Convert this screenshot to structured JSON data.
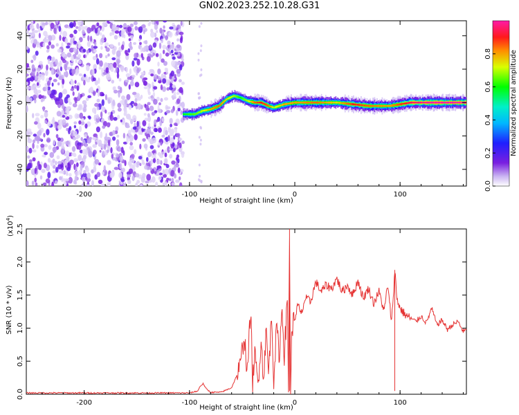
{
  "title": "GN02.2023.252.10.28.G31",
  "chart_data": [
    {
      "type": "heatmap",
      "xlabel": "Height of straight line (km)",
      "ylabel": "Frequency (Hz)",
      "xlim": [
        -255,
        163
      ],
      "ylim": [
        -50,
        49
      ],
      "xticks": [
        -200,
        -100,
        0,
        100
      ],
      "xtick_labels": [
        "-200",
        "-100",
        "0",
        "100"
      ],
      "yticks": [
        -40,
        -20,
        0,
        20,
        40
      ],
      "ytick_labels": [
        "-40",
        "-20",
        "0",
        "20",
        "40"
      ],
      "colorbar": {
        "label": "Normalized spectral amplitude",
        "range": [
          0,
          1
        ],
        "ticks": [
          0.0,
          0.2,
          0.4,
          0.6,
          0.8
        ],
        "tick_labels": [
          "0.0",
          "0.2",
          "0.4",
          "0.6",
          "0.8"
        ],
        "colormap": "rainbow"
      },
      "noise_region_x": [
        -255,
        -106
      ],
      "signal_track": {
        "x": [
          -106,
          -95,
          -88,
          -80,
          -72,
          -65,
          -58,
          -52,
          -45,
          -38,
          -32,
          -25,
          -20,
          -10,
          0,
          20,
          40,
          55,
          70,
          90,
          110,
          130,
          163
        ],
        "y": [
          -7,
          -7,
          -5,
          -4,
          -2,
          2,
          4,
          3,
          1,
          0,
          0,
          -2,
          -3,
          -1,
          0,
          0,
          0,
          -1,
          -2,
          -2,
          0,
          0,
          0
        ],
        "amplitude": [
          0.6,
          0.65,
          0.7,
          0.8,
          0.85,
          0.75,
          0.7,
          0.6,
          0.7,
          0.85,
          0.9,
          0.85,
          0.7,
          0.8,
          0.8,
          0.85,
          0.75,
          0.9,
          0.85,
          0.8,
          0.95,
          1.0,
          1.0
        ]
      }
    },
    {
      "type": "line",
      "xlabel": "Height of straight line (km)",
      "ylabel": "SNR (10 * v/v)",
      "y_multiplier_label": "(x10",
      "y_multiplier_exp": "4",
      "y_multiplier_close": ")",
      "xlim": [
        -255,
        163
      ],
      "ylim": [
        0,
        2.5
      ],
      "xticks": [
        -200,
        -100,
        0,
        100
      ],
      "xtick_labels": [
        "-200",
        "-100",
        "0",
        "100"
      ],
      "yticks": [
        0,
        0.5,
        1.0,
        1.5,
        2.0,
        2.5
      ],
      "ytick_labels": [
        "0.0",
        "0.5",
        "1.0",
        "1.5",
        "2.0",
        "2.5"
      ],
      "color": "#e53333",
      "series": [
        {
          "x": [
            -255,
            -200,
            -150,
            -100,
            -92,
            -90,
            -87,
            -84,
            -80,
            -70,
            -60,
            -52,
            -48,
            -45,
            -42,
            -40,
            -38,
            -35,
            -32,
            -30,
            -27,
            -25,
            -22,
            -20,
            -17,
            -15,
            -12,
            -10,
            -7,
            -6,
            -5,
            -4,
            -3,
            -2,
            0,
            3,
            6,
            10,
            15,
            20,
            25,
            30,
            35,
            40,
            45,
            50,
            55,
            60,
            65,
            70,
            75,
            80,
            85,
            88,
            92,
            95,
            97,
            100,
            105,
            110,
            115,
            120,
            125,
            130,
            135,
            140,
            145,
            150,
            155,
            160,
            163
          ],
          "y": [
            0.02,
            0.02,
            0.02,
            0.02,
            0.05,
            0.12,
            0.16,
            0.08,
            0.03,
            0.03,
            0.1,
            0.4,
            0.9,
            0.3,
            1.3,
            0.2,
            0.6,
            0.15,
            0.85,
            0.25,
            0.95,
            0.3,
            1.2,
            0.25,
            1.05,
            0.55,
            1.3,
            0.6,
            1.4,
            0.1,
            2.5,
            0.05,
            0.8,
            1.05,
            1.15,
            1.35,
            1.2,
            1.45,
            1.4,
            1.7,
            1.55,
            1.65,
            1.6,
            1.75,
            1.55,
            1.65,
            1.5,
            1.72,
            1.45,
            1.6,
            1.38,
            1.55,
            1.25,
            1.65,
            1.1,
            1.88,
            1.45,
            1.3,
            1.2,
            1.15,
            1.1,
            1.18,
            1.08,
            1.3,
            1.05,
            1.12,
            0.98,
            1.05,
            1.1,
            0.95,
            0.97
          ]
        }
      ]
    }
  ]
}
